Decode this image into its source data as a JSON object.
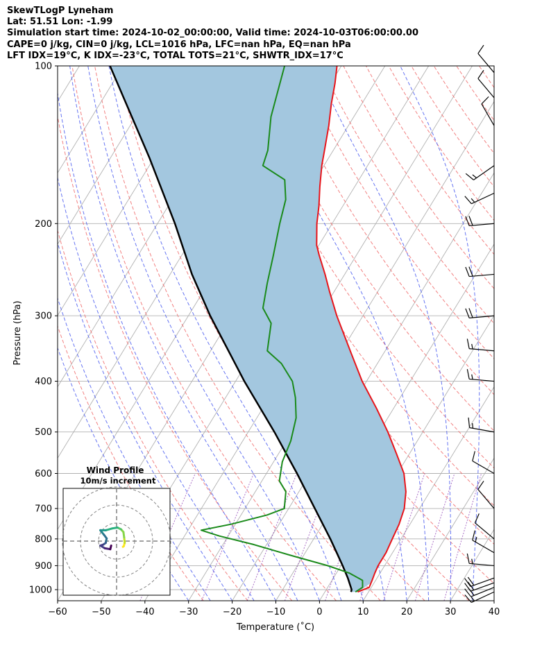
{
  "header": {
    "line1": "SkewTLogP Lyneham",
    "line2": "Lat: 51.51   Lon: -1.99",
    "line3": "Simulation start time: 2024-10-02_00:00:00, Valid time: 2024-10-03T06:00:00.00",
    "line4": "CAPE=0 j/kg, CIN=0 j/kg, LCL=1016 hPa, LFC=nan hPa, EQ=nan hPa",
    "line5": "LFT IDX=19°C, K IDX=-23°C, TOTAL TOTS=21°C, SHWTR_IDX=17°C"
  },
  "colors": {
    "temperature": "#e8141a",
    "dewpoint": "#1a8a1a",
    "parcel": "#000000",
    "shade": "#a3c7df",
    "dry_adiabat": "#f06a6a",
    "moist_adiabat": "#4a5cf0",
    "mixing_ratio": "#9448b8",
    "isotherm": "#b0b0b0"
  },
  "chart_data": {
    "type": "skewt",
    "xlabel": "Temperature (˚C)",
    "ylabel": "Pressure (hPa)",
    "xlim": [
      -60,
      40
    ],
    "ylim": [
      1050,
      100
    ],
    "x_ticks": [
      -60,
      -50,
      -40,
      -30,
      -20,
      -10,
      0,
      10,
      20,
      30,
      40
    ],
    "y_ticks": [
      1000,
      900,
      800,
      700,
      600,
      500,
      400,
      300,
      200,
      100
    ],
    "grid": true,
    "temperature": {
      "p": [
        1010,
        990,
        960,
        930,
        900,
        850,
        800,
        750,
        700,
        650,
        600,
        550,
        500,
        450,
        400,
        350,
        300,
        270,
        250,
        230,
        220,
        200,
        185,
        170,
        155,
        145,
        130,
        118,
        108,
        100
      ],
      "t": [
        7.5,
        9.5,
        9.2,
        8.8,
        8.5,
        8.5,
        8.0,
        7.5,
        6.5,
        4.5,
        1.5,
        -3.0,
        -8.0,
        -14.0,
        -21.0,
        -28.0,
        -36.0,
        -41.0,
        -44.5,
        -48.5,
        -50.5,
        -53.5,
        -55.5,
        -58.0,
        -60.5,
        -62.0,
        -64.5,
        -67.0,
        -69.0,
        -71.0
      ]
    },
    "dewpoint": {
      "p": [
        1010,
        990,
        960,
        930,
        900,
        860,
        820,
        790,
        770,
        750,
        720,
        700,
        650,
        620,
        570,
        520,
        470,
        430,
        400,
        370,
        350,
        310,
        290,
        260,
        230,
        200,
        180,
        165,
        155,
        145,
        125,
        100
      ],
      "t": [
        7.0,
        8.0,
        7.0,
        3.0,
        -3.0,
        -13.0,
        -23.0,
        -32.0,
        -37.0,
        -31.0,
        -24.0,
        -21.0,
        -23.0,
        -26.0,
        -28.0,
        -29.0,
        -31.0,
        -34.0,
        -37.0,
        -42.0,
        -47.0,
        -50.0,
        -54.0,
        -56.5,
        -59.0,
        -62.0,
        -64.0,
        -67.0,
        -74.0,
        -75.0,
        -79.0,
        -83.0
      ]
    },
    "parcel": {
      "p": [
        1010,
        1000,
        950,
        900,
        850,
        800,
        700,
        600,
        500,
        400,
        300,
        250,
        200,
        150,
        100
      ],
      "t": [
        6.0,
        5.8,
        3.3,
        0.4,
        -2.8,
        -6.2,
        -14.0,
        -23.0,
        -34.0,
        -48.0,
        -65.0,
        -75.0,
        -86.0,
        -101.0,
        -123.0
      ]
    },
    "wind_barbs": [
      {
        "p": 1010,
        "speed_kt": 18,
        "dir": 245
      },
      {
        "p": 990,
        "speed_kt": 22,
        "dir": 248
      },
      {
        "p": 970,
        "speed_kt": 22,
        "dir": 250
      },
      {
        "p": 950,
        "speed_kt": 20,
        "dir": 250
      },
      {
        "p": 900,
        "speed_kt": 15,
        "dir": 275
      },
      {
        "p": 850,
        "speed_kt": 15,
        "dir": 300
      },
      {
        "p": 800,
        "speed_kt": 12,
        "dir": 310
      },
      {
        "p": 700,
        "speed_kt": 12,
        "dir": 320
      },
      {
        "p": 600,
        "speed_kt": 10,
        "dir": 300
      },
      {
        "p": 500,
        "speed_kt": 15,
        "dir": 280
      },
      {
        "p": 400,
        "speed_kt": 15,
        "dir": 275
      },
      {
        "p": 350,
        "speed_kt": 15,
        "dir": 275
      },
      {
        "p": 300,
        "speed_kt": 20,
        "dir": 265
      },
      {
        "p": 250,
        "speed_kt": 20,
        "dir": 265
      },
      {
        "p": 200,
        "speed_kt": 20,
        "dir": 265
      },
      {
        "p": 175,
        "speed_kt": 15,
        "dir": 245
      },
      {
        "p": 155,
        "speed_kt": 15,
        "dir": 235
      },
      {
        "p": 130,
        "speed_kt": 10,
        "dir": 330
      },
      {
        "p": 115,
        "speed_kt": 10,
        "dir": 320
      },
      {
        "p": 103,
        "speed_kt": 10,
        "dir": 320
      }
    ],
    "hodograph": {
      "title": "Wind Profile",
      "subtitle": "10m/s increment",
      "rings_ms": [
        10,
        20,
        30
      ],
      "u": [
        3.5,
        4,
        4.5,
        4.2,
        3.8,
        2.5,
        0.5,
        -2.5,
        -6,
        -9,
        -7,
        -5.5,
        -6,
        -7.5,
        -9,
        -6.5,
        -3.5,
        -3
      ],
      "v": [
        3.2,
        2.8,
        1,
        -2,
        -5,
        -6.5,
        -7.5,
        -7,
        -6,
        -6,
        -3.5,
        -1.5,
        1,
        2,
        2.5,
        4,
        4.5,
        2.5
      ]
    }
  }
}
